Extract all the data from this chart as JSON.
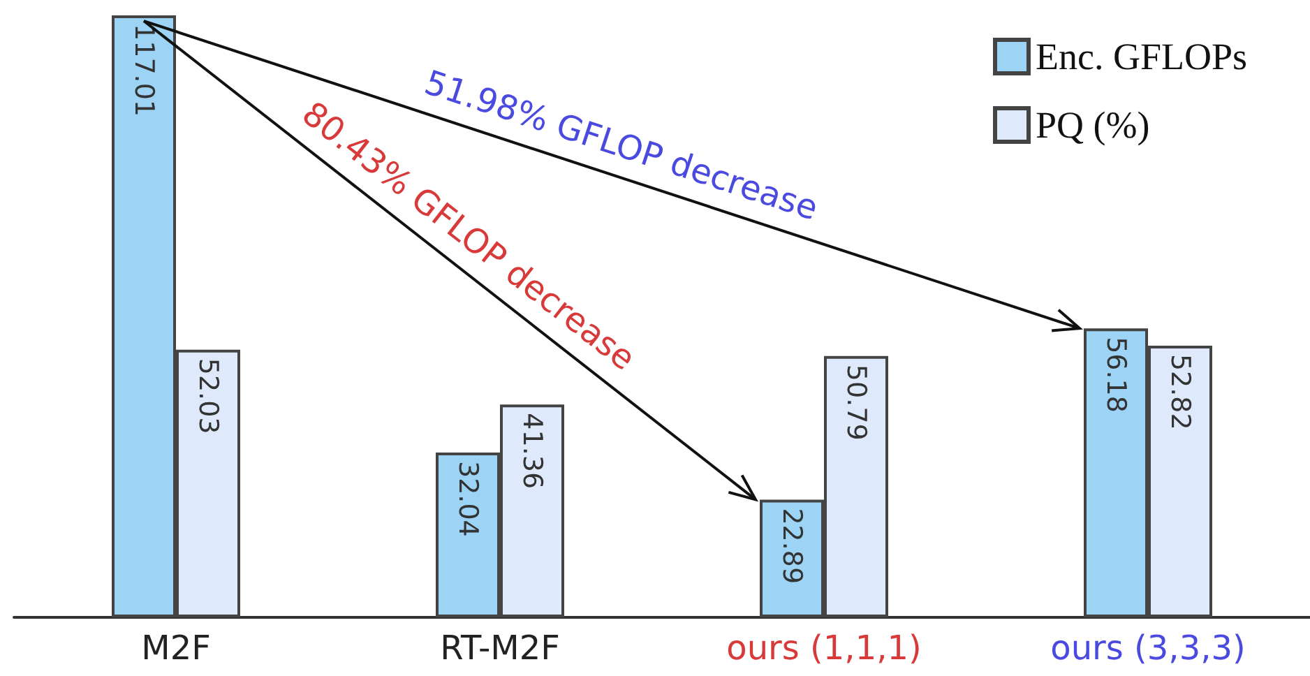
{
  "chart_data": {
    "type": "bar",
    "categories": [
      "M2F",
      "RT-M2F",
      "ours (1,1,1)",
      "ours (3,3,3)"
    ],
    "series": [
      {
        "name": "Enc. GFLOPs",
        "color": "#9dd4f5",
        "values": [
          117.01,
          32.04,
          22.89,
          56.18
        ]
      },
      {
        "name": "PQ (%)",
        "color": "#deeafb",
        "values": [
          52.03,
          41.36,
          50.79,
          52.82
        ]
      }
    ],
    "data_labels": true,
    "tick_labels": "x",
    "legend": "top right",
    "annotations": [
      "51.98% GFLOP decrease",
      "80.43% GFLOP decrease"
    ]
  }
}
